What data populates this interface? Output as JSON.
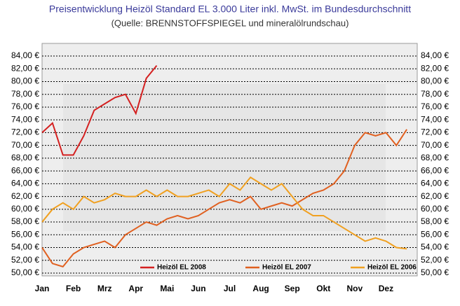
{
  "chart_data": {
    "type": "line",
    "title": "Preisentwicklung Heizöl Standard EL 3.000 Liter inkl. MwSt. im Bundesdurchschnitt",
    "subtitle": "(Quelle: BRENNSTOFFSPIEGEL und mineralölrundschau)",
    "categories": [
      "Jan",
      null,
      null,
      "Feb",
      null,
      null,
      "Mrz",
      null,
      null,
      "Apr",
      null,
      null,
      "Mai",
      null,
      null,
      "Jun",
      null,
      null,
      "Jul",
      null,
      null,
      "Aug",
      null,
      null,
      "Sep",
      null,
      null,
      "Okt",
      null,
      null,
      "Nov",
      null,
      null,
      "Dez",
      null,
      null
    ],
    "series": [
      {
        "name": "Heizöl EL 2008",
        "color": "#d42020",
        "values": [
          72,
          73.5,
          68.5,
          68.5,
          71.5,
          75.5,
          76.5,
          77.5,
          78,
          75,
          80.5,
          82.5,
          null,
          null,
          null,
          null,
          null,
          null,
          null,
          null,
          null,
          null,
          null,
          null,
          null,
          null,
          null,
          null,
          null,
          null,
          null,
          null,
          null,
          null,
          null,
          null
        ]
      },
      {
        "name": "Heizöl EL 2007",
        "color": "#e06020",
        "values": [
          54,
          51.5,
          51,
          53,
          54,
          54.5,
          55,
          54,
          56,
          57,
          58,
          57.5,
          58.5,
          59,
          58.5,
          59,
          60,
          61,
          61.5,
          61,
          62,
          60,
          60.5,
          61,
          60.5,
          61.5,
          62.5,
          63,
          64,
          66,
          70,
          72,
          71.5,
          72,
          70,
          72.5
        ]
      },
      {
        "name": "Heizöl EL 2006",
        "color": "#f0a020",
        "values": [
          58,
          60,
          61,
          60,
          62,
          61,
          61.5,
          62.5,
          62,
          62,
          63,
          62,
          63,
          62,
          62,
          62.5,
          63,
          62,
          64,
          63,
          65,
          64,
          63,
          64,
          62,
          60,
          59,
          59,
          58,
          57,
          56,
          55,
          55.5,
          55,
          54,
          53.8
        ]
      }
    ],
    "ylim": [
      50,
      84
    ],
    "yticks": [
      {
        "value": 50,
        "label": "50,00 €"
      },
      {
        "value": 52,
        "label": "52,00 €"
      },
      {
        "value": 54,
        "label": "54,00 €"
      },
      {
        "value": 56,
        "label": "56,00 €"
      },
      {
        "value": 58,
        "label": "58,00 €"
      },
      {
        "value": 60,
        "label": "60,00 €"
      },
      {
        "value": 62,
        "label": "62,00 €"
      },
      {
        "value": 64,
        "label": "64,00 €"
      },
      {
        "value": 66,
        "label": "66,00 €"
      },
      {
        "value": 68,
        "label": "68,00 €"
      },
      {
        "value": 70,
        "label": "70,00 €"
      },
      {
        "value": 72,
        "label": "72,00 €"
      },
      {
        "value": 74,
        "label": "74,00 €"
      },
      {
        "value": 76,
        "label": "76,00 €"
      },
      {
        "value": 78,
        "label": "78,00 €"
      },
      {
        "value": 80,
        "label": "80,00 €"
      },
      {
        "value": 82,
        "label": "82,00 €"
      },
      {
        "value": 84,
        "label": "84,00 €"
      }
    ],
    "grid": true
  }
}
